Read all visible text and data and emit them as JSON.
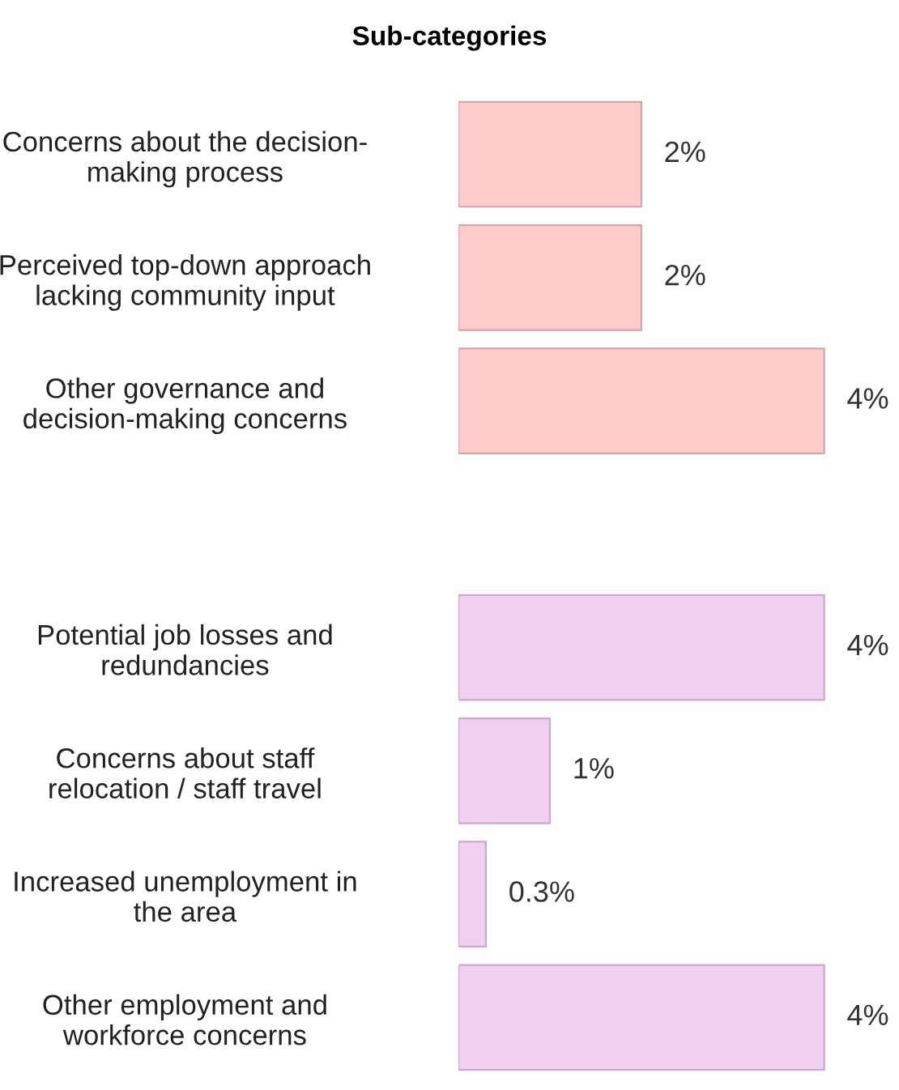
{
  "chart_data": {
    "type": "bar",
    "orientation": "horizontal",
    "title": "Sub-categories",
    "categories": [
      "Concerns about the decision-\nmaking process",
      "Perceived top-down approach\nlacking community input",
      "Other governance and\ndecision-making concerns",
      null,
      "Potential job losses and\nredundancies",
      "Concerns about staff\nrelocation / staff travel",
      "Increased unemployment in\nthe area",
      "Other employment and\nworkforce concerns"
    ],
    "values": [
      2,
      2,
      4,
      null,
      4,
      1,
      0.3,
      4
    ],
    "colors": [
      "#ffcccc",
      "#ffcccc",
      "#ffcccc",
      null,
      "#f0d0f0",
      "#f0d0f0",
      "#f0d0f0",
      "#f0d0f0"
    ],
    "value_labels": [
      "2%",
      "2%",
      "4%",
      null,
      "4%",
      "1%",
      "0.3%",
      "4%"
    ],
    "grid": false,
    "legend": false
  }
}
